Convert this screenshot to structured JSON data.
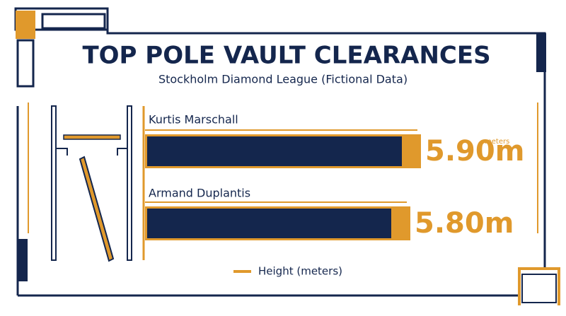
{
  "chart_data": {
    "type": "hbar",
    "title": "TOP POLE VAULT CLEARANCES",
    "subtitle": "Stockholm Diamond League (Fictional Data)",
    "categories": [
      "Kurtis Marschall",
      "Armand Duplantis"
    ],
    "series": [
      {
        "name": "Height (meters)",
        "color": "#e0992c",
        "values": [
          5.9,
          5.8
        ],
        "value_labels": [
          "5.90m",
          "5.80m"
        ]
      }
    ],
    "annotation": "meters",
    "xlim": [
      3.3,
      6.5
    ]
  }
}
